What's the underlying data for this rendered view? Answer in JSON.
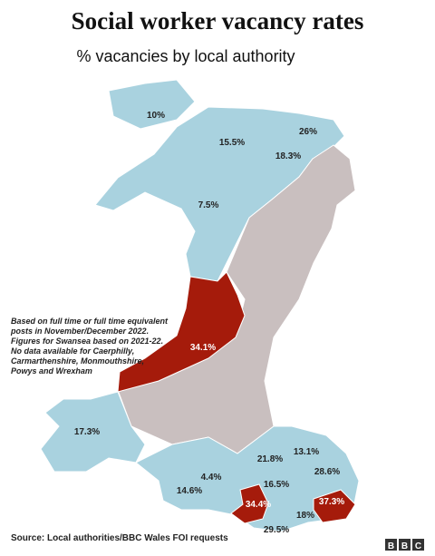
{
  "title": "Social worker vacancy rates",
  "subtitle": "% vacancies by local authority",
  "note": [
    "Based on full time or full time equivalent",
    "posts in November/December 2022.",
    "Figures for Swansea based on 2021-22.",
    "No data available for Caerphilly,",
    "Carmarthenshire, Monmouthshire,",
    "Powys and Wrexham"
  ],
  "regions": [
    {
      "label": "10%"
    },
    {
      "label": "26%"
    },
    {
      "label": "15.5%"
    },
    {
      "label": "18.3%"
    },
    {
      "label": "7.5%"
    },
    {
      "label": "34.1%"
    },
    {
      "label": "17.3%"
    },
    {
      "label": "21.8%"
    },
    {
      "label": "13.1%"
    },
    {
      "label": "4.4%"
    },
    {
      "label": "16.5%"
    },
    {
      "label": "28.6%"
    },
    {
      "label": "14.6%"
    },
    {
      "label": "34.4%"
    },
    {
      "label": "37.3%"
    },
    {
      "label": "18%"
    },
    {
      "label": "29.5%"
    }
  ],
  "source": "Source: Local authorities/BBC Wales FOI requests",
  "logo": [
    "B",
    "B",
    "C"
  ]
}
